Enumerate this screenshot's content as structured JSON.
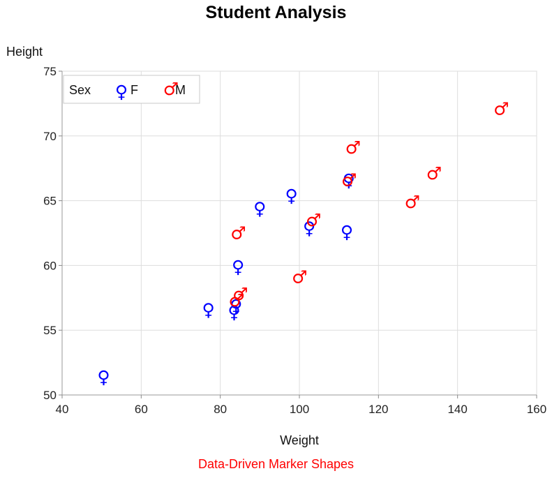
{
  "chart_data": {
    "type": "scatter",
    "title": "Student Analysis",
    "footnote": "Data-Driven Marker Shapes",
    "footnote_color": "#ff0000",
    "xlabel": "Weight",
    "ylabel": "Height",
    "xlim": [
      40,
      160
    ],
    "ylim": [
      50,
      75
    ],
    "xticks": [
      40,
      60,
      80,
      100,
      120,
      140,
      160
    ],
    "yticks": [
      50,
      55,
      60,
      65,
      70,
      75
    ],
    "grid": true,
    "legend": {
      "title": "Sex",
      "placement": "top-left"
    },
    "series": [
      {
        "name": "F",
        "color": "#0000ff",
        "marker": "female-symbol",
        "points": [
          [
            50.5,
            51.3
          ],
          [
            77.0,
            56.5
          ],
          [
            83.5,
            56.3
          ],
          [
            84.0,
            56.8
          ],
          [
            84.5,
            59.8
          ],
          [
            90.0,
            64.3
          ],
          [
            98.0,
            65.3
          ],
          [
            102.5,
            62.8
          ],
          [
            112.0,
            62.5
          ],
          [
            112.5,
            66.5
          ]
        ]
      },
      {
        "name": "M",
        "color": "#ff0000",
        "marker": "male-symbol",
        "points": [
          [
            83.0,
            57.0
          ],
          [
            84.0,
            57.5
          ],
          [
            83.5,
            62.2
          ],
          [
            99.0,
            58.8
          ],
          [
            102.5,
            63.2
          ],
          [
            111.5,
            66.3
          ],
          [
            112.5,
            68.8
          ],
          [
            127.5,
            64.6
          ],
          [
            133.0,
            66.8
          ],
          [
            150.0,
            71.8
          ]
        ]
      }
    ]
  }
}
